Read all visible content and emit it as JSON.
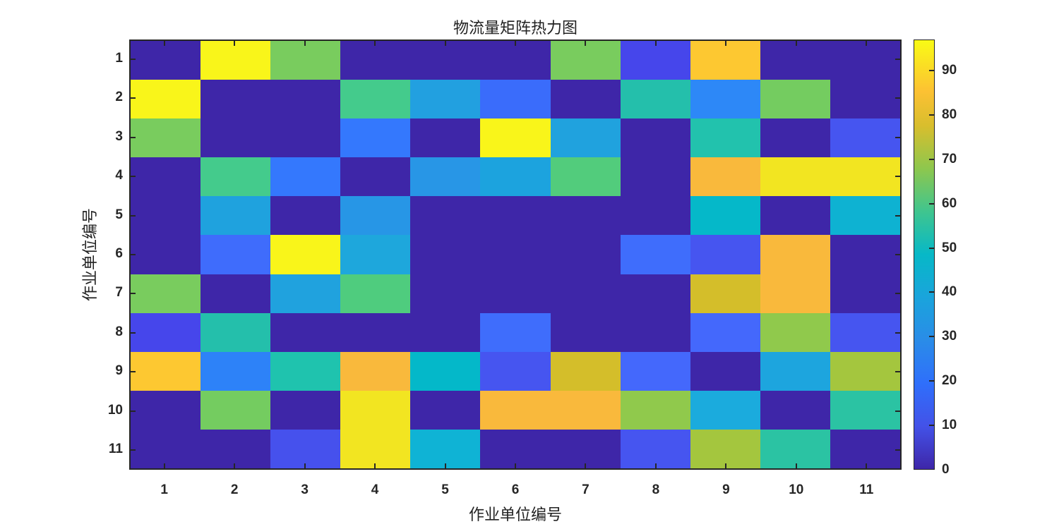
{
  "chart_data": {
    "type": "heatmap",
    "title": "物流量矩阵热力图",
    "xlabel": "作业单位编号",
    "ylabel": "作业单位编号",
    "x": [
      "1",
      "2",
      "3",
      "4",
      "5",
      "6",
      "7",
      "8",
      "9",
      "10",
      "11"
    ],
    "y": [
      "1",
      "2",
      "3",
      "4",
      "5",
      "6",
      "7",
      "8",
      "9",
      "10",
      "11"
    ],
    "values": [
      [
        0,
        97,
        65,
        0,
        0,
        0,
        65,
        10,
        88,
        0,
        0
      ],
      [
        97,
        0,
        0,
        58,
        35,
        22,
        0,
        52,
        28,
        63,
        0
      ],
      [
        65,
        0,
        0,
        25,
        0,
        97,
        35,
        0,
        52,
        0,
        13
      ],
      [
        0,
        58,
        25,
        0,
        32,
        35,
        60,
        0,
        82,
        95,
        95
      ],
      [
        0,
        35,
        0,
        30,
        0,
        0,
        0,
        0,
        46,
        0,
        42
      ],
      [
        0,
        22,
        97,
        35,
        0,
        0,
        0,
        22,
        15,
        82,
        0
      ],
      [
        65,
        0,
        35,
        60,
        0,
        0,
        0,
        0,
        75,
        82,
        0
      ],
      [
        10,
        52,
        0,
        0,
        0,
        25,
        0,
        0,
        18,
        67,
        16
      ],
      [
        88,
        28,
        52,
        82,
        46,
        15,
        75,
        18,
        0,
        37,
        70
      ],
      [
        0,
        63,
        0,
        95,
        0,
        82,
        82,
        67,
        37,
        0,
        55
      ],
      [
        0,
        0,
        13,
        95,
        42,
        0,
        0,
        16,
        70,
        55,
        0
      ]
    ],
    "colormap": "parula",
    "colorbar": {
      "range": [
        0,
        97
      ],
      "ticks": [
        "0",
        "10",
        "20",
        "30",
        "40",
        "50",
        "60",
        "70",
        "80",
        "90"
      ]
    },
    "grid": false,
    "legend_position": "right (colorbar)"
  },
  "cell_colors": [
    [
      "#3e26a8",
      "#f9f51a",
      "#79cc5e",
      "#3e26a8",
      "#3e26a8",
      "#3e26a8",
      "#79cc5e",
      "#4646eb",
      "#fdc831",
      "#3e26a8",
      "#3e26a8"
    ],
    [
      "#f9f51a",
      "#3e26a8",
      "#3e26a8",
      "#44cb8c",
      "#22a0e0",
      "#3a6cfb",
      "#3e26a8",
      "#24bfab",
      "#2d88f7",
      "#74cc60",
      "#3e26a8"
    ],
    [
      "#79cc5e",
      "#3e26a8",
      "#3e26a8",
      "#3478fd",
      "#3e26a8",
      "#f9f51a",
      "#20a2de",
      "#3e26a8",
      "#22c2ad",
      "#3e26a8",
      "#4655f0"
    ],
    [
      "#3e26a8",
      "#44cb8c",
      "#3478fd",
      "#3e26a8",
      "#2896e6",
      "#1ca3de",
      "#52cc7c",
      "#3e26a8",
      "#f9b93c",
      "#f2e521",
      "#f2e521"
    ],
    [
      "#3e26a8",
      "#1fa2de",
      "#3e26a8",
      "#2796e6",
      "#3e26a8",
      "#3e26a8",
      "#3e26a8",
      "#3e26a8",
      "#05b8c9",
      "#3e26a8",
      "#0eb2d2"
    ],
    [
      "#3e26a8",
      "#3f6cfc",
      "#f9f51a",
      "#1ea7dc",
      "#3e26a8",
      "#3e26a8",
      "#3e26a8",
      "#3f6dfc",
      "#4655f0",
      "#f9b93c",
      "#3e26a8"
    ],
    [
      "#79cc5e",
      "#3e26a8",
      "#20a2de",
      "#4fcc7e",
      "#3e26a8",
      "#3e26a8",
      "#3e26a8",
      "#3e26a8",
      "#d4be2a",
      "#f9b93c",
      "#3e26a8"
    ],
    [
      "#4646eb",
      "#24bfab",
      "#3e26a8",
      "#3e26a8",
      "#3e26a8",
      "#3f6dfc",
      "#3e26a8",
      "#3e26a8",
      "#4468fc",
      "#90c94c",
      "#4655f0"
    ],
    [
      "#fdc831",
      "#2d82f8",
      "#1fc3ae",
      "#f9b93c",
      "#04b8c9",
      "#4655f0",
      "#d4be2a",
      "#4468fc",
      "#3e26a8",
      "#1da5de",
      "#a4c63e"
    ],
    [
      "#3e26a8",
      "#74cc60",
      "#3e26a8",
      "#f2e521",
      "#3e26a8",
      "#f9b93c",
      "#f9b93c",
      "#90c94c",
      "#1babdd",
      "#3e26a8",
      "#2bc3a3"
    ],
    [
      "#3e26a8",
      "#3e26a8",
      "#4651ed",
      "#f2e521",
      "#0fb3d5",
      "#3e26a8",
      "#3e26a8",
      "#4655f0",
      "#a4c63e",
      "#2bc3a3",
      "#3e26a8"
    ]
  ]
}
